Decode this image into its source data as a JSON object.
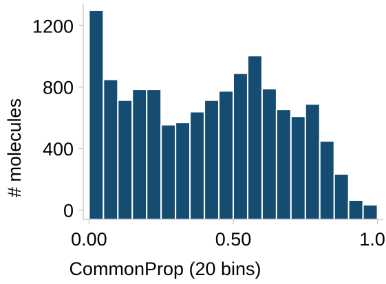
{
  "chart_data": {
    "type": "bar",
    "title": "",
    "xlabel": "CommonProp (20 bins)",
    "ylabel": "# molecules",
    "bins": 20,
    "bin_edges": [
      0.0,
      0.05,
      0.1,
      0.15,
      0.2,
      0.25,
      0.3,
      0.35,
      0.4,
      0.45,
      0.5,
      0.55,
      0.6,
      0.65,
      0.7,
      0.75,
      0.8,
      0.85,
      0.9,
      0.95,
      1.0
    ],
    "values": [
      1300,
      850,
      715,
      785,
      785,
      555,
      570,
      640,
      715,
      775,
      890,
      1005,
      790,
      655,
      610,
      690,
      450,
      235,
      65,
      35
    ],
    "xlim": [
      -0.02,
      1.02
    ],
    "ylim": [
      -60,
      1340
    ],
    "xticks": [
      0.0,
      0.5,
      1.0
    ],
    "xtick_labels": [
      "0.00",
      "0.50",
      "1.00"
    ],
    "yticks": [
      0,
      400,
      800,
      1200
    ],
    "ytick_labels": [
      "0",
      "400",
      "800",
      "1200"
    ],
    "grid": false,
    "bar_color": "#154C71",
    "bar_edge_color": "#ffffff",
    "axis_color": "#b3b3b3"
  }
}
